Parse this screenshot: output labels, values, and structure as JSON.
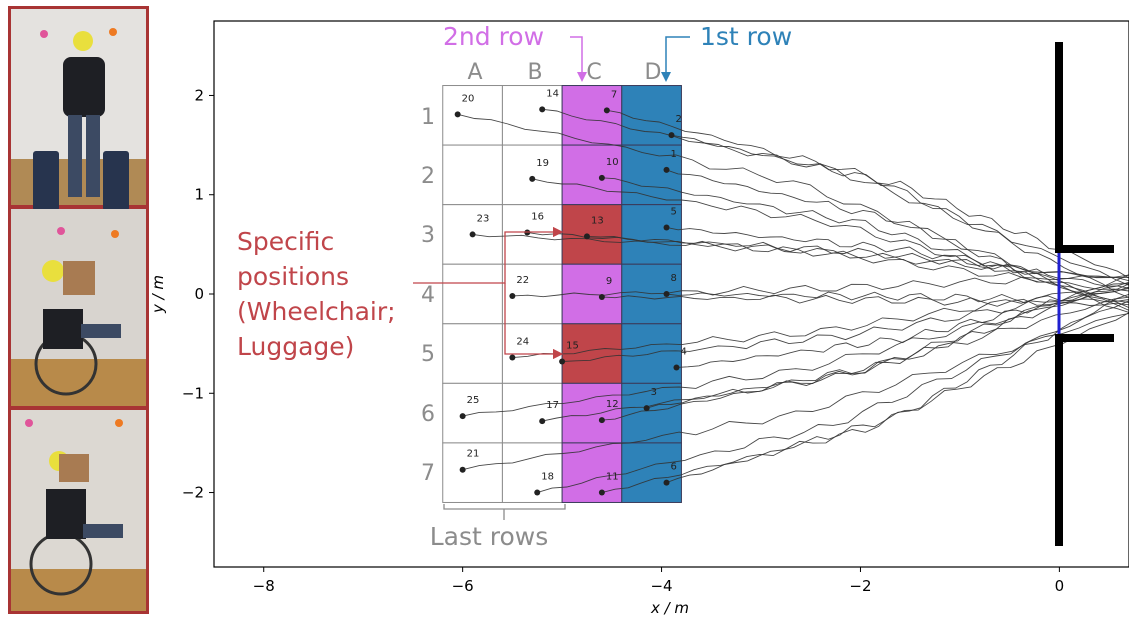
{
  "chart_data": {
    "type": "line",
    "xlabel": "x / m",
    "ylabel": "y / m",
    "xlim": [
      -8.5,
      0.7
    ],
    "ylim": [
      -2.75,
      2.75
    ],
    "xticks": [
      -8,
      -6,
      -4,
      -2,
      0
    ],
    "yticks": [
      -2,
      -1,
      0,
      1,
      2
    ],
    "tick_labels_x": [
      "−8",
      "−6",
      "−4",
      "−2",
      "0"
    ],
    "tick_labels_y": [
      "−2",
      "−1",
      "0",
      "1",
      "2"
    ],
    "grid": false,
    "columns": [
      "A",
      "B",
      "C",
      "D"
    ],
    "rows": [
      "1",
      "2",
      "3",
      "4",
      "5",
      "6",
      "7"
    ],
    "annotations": {
      "second_row": "2nd row",
      "first_row": "1st row",
      "specific": [
        "Specific",
        "positions",
        "(Wheelchair;",
        "Luggage)"
      ],
      "last_rows": "Last rows"
    },
    "colors": {
      "row1": "#2e82b8",
      "row2": "#d16ee6",
      "specific": "#c0454a",
      "grey": "#8c8c8c",
      "line": "#333333",
      "door": "#000000",
      "exit": "#2020d0"
    },
    "participants": [
      {
        "id": "1",
        "x": -3.95,
        "y": 1.25
      },
      {
        "id": "2",
        "x": -3.9,
        "y": 1.6
      },
      {
        "id": "3",
        "x": -4.15,
        "y": -1.15
      },
      {
        "id": "4",
        "x": -3.85,
        "y": -0.74
      },
      {
        "id": "5",
        "x": -3.95,
        "y": 0.67
      },
      {
        "id": "6",
        "x": -3.95,
        "y": -1.9
      },
      {
        "id": "7",
        "x": -4.55,
        "y": 1.85
      },
      {
        "id": "8",
        "x": -3.95,
        "y": 0.0
      },
      {
        "id": "9",
        "x": -4.6,
        "y": -0.03
      },
      {
        "id": "10",
        "x": -4.6,
        "y": 1.17
      },
      {
        "id": "11",
        "x": -4.6,
        "y": -2.0
      },
      {
        "id": "12",
        "x": -4.6,
        "y": -1.27
      },
      {
        "id": "13",
        "x": -4.75,
        "y": 0.58
      },
      {
        "id": "14",
        "x": -5.2,
        "y": 1.86
      },
      {
        "id": "15",
        "x": -5.0,
        "y": -0.68
      },
      {
        "id": "16",
        "x": -5.35,
        "y": 0.62
      },
      {
        "id": "17",
        "x": -5.2,
        "y": -1.28
      },
      {
        "id": "18",
        "x": -5.25,
        "y": -2.0
      },
      {
        "id": "19",
        "x": -5.3,
        "y": 1.16
      },
      {
        "id": "20",
        "x": -6.05,
        "y": 1.81
      },
      {
        "id": "21",
        "x": -6.0,
        "y": -1.77
      },
      {
        "id": "22",
        "x": -5.5,
        "y": -0.02
      },
      {
        "id": "23",
        "x": -5.9,
        "y": 0.6
      },
      {
        "id": "24",
        "x": -5.5,
        "y": -0.64
      },
      {
        "id": "25",
        "x": -6.0,
        "y": -1.23
      }
    ]
  }
}
